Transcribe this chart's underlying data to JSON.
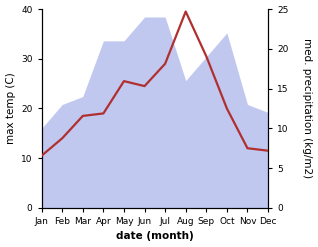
{
  "months": [
    "Jan",
    "Feb",
    "Mar",
    "Apr",
    "May",
    "Jun",
    "Jul",
    "Aug",
    "Sep",
    "Oct",
    "Nov",
    "Dec"
  ],
  "month_indices": [
    0,
    1,
    2,
    3,
    4,
    5,
    6,
    7,
    8,
    9,
    10,
    11
  ],
  "temperature": [
    10.5,
    14.0,
    18.5,
    19.0,
    25.5,
    24.5,
    29.0,
    39.5,
    30.5,
    20.0,
    12.0,
    11.5
  ],
  "precipitation": [
    10.0,
    13.0,
    14.0,
    21.0,
    21.0,
    24.0,
    24.0,
    16.0,
    19.0,
    22.0,
    13.0,
    12.0
  ],
  "temp_color": "#b03030",
  "precip_fill_color": "#c0c8f0",
  "temp_ylim": [
    0,
    40
  ],
  "precip_ylim": [
    0,
    25
  ],
  "temp_yticks": [
    0,
    10,
    20,
    30,
    40
  ],
  "precip_yticks": [
    0,
    5,
    10,
    15,
    20,
    25
  ],
  "xlabel": "date (month)",
  "ylabel_left": "max temp (C)",
  "ylabel_right": "med. precipitation (kg/m2)",
  "bg_color": "#ffffff",
  "label_fontsize": 7.5,
  "tick_fontsize": 6.5,
  "linewidth": 1.6
}
